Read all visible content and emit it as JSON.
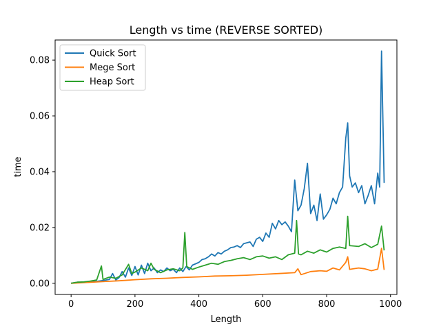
{
  "chart_data": {
    "type": "line",
    "title": "Length vs time (REVERSE SORTED)",
    "xlabel": "Length",
    "ylabel": "time",
    "xlim": [
      -50,
      1020
    ],
    "ylim": [
      -0.004,
      0.0872
    ],
    "xticks": [
      0,
      200,
      400,
      600,
      800,
      1000
    ],
    "xtick_labels": [
      "0",
      "200",
      "400",
      "600",
      "800",
      "1000"
    ],
    "yticks": [
      0.0,
      0.02,
      0.04,
      0.06,
      0.08
    ],
    "ytick_labels": [
      "0.00",
      "0.02",
      "0.04",
      "0.06",
      "0.08"
    ],
    "grid": false,
    "legend": "top-left",
    "series": [
      {
        "name": "Quick Sort",
        "color": "#1f77b4",
        "points": [
          [
            0,
            0.0
          ],
          [
            20,
            0.0004
          ],
          [
            40,
            0.0003
          ],
          [
            60,
            0.0006
          ],
          [
            80,
            0.0007
          ],
          [
            100,
            0.001
          ],
          [
            120,
            0.0014
          ],
          [
            130,
            0.0035
          ],
          [
            140,
            0.0012
          ],
          [
            150,
            0.002
          ],
          [
            160,
            0.0042
          ],
          [
            170,
            0.0022
          ],
          [
            180,
            0.0055
          ],
          [
            190,
            0.0028
          ],
          [
            200,
            0.006
          ],
          [
            210,
            0.003
          ],
          [
            220,
            0.0065
          ],
          [
            230,
            0.0035
          ],
          [
            240,
            0.0072
          ],
          [
            250,
            0.0045
          ],
          [
            260,
            0.0055
          ],
          [
            270,
            0.0038
          ],
          [
            280,
            0.0048
          ],
          [
            290,
            0.0042
          ],
          [
            300,
            0.0055
          ],
          [
            310,
            0.0045
          ],
          [
            320,
            0.005
          ],
          [
            330,
            0.0038
          ],
          [
            340,
            0.0055
          ],
          [
            350,
            0.0042
          ],
          [
            360,
            0.006
          ],
          [
            370,
            0.0048
          ],
          [
            380,
            0.0065
          ],
          [
            390,
            0.007
          ],
          [
            400,
            0.0075
          ],
          [
            410,
            0.0085
          ],
          [
            420,
            0.0088
          ],
          [
            430,
            0.0095
          ],
          [
            440,
            0.0105
          ],
          [
            450,
            0.0098
          ],
          [
            460,
            0.011
          ],
          [
            470,
            0.0105
          ],
          [
            480,
            0.0115
          ],
          [
            490,
            0.012
          ],
          [
            500,
            0.0128
          ],
          [
            510,
            0.013
          ],
          [
            520,
            0.0135
          ],
          [
            530,
            0.0128
          ],
          [
            540,
            0.0142
          ],
          [
            550,
            0.0145
          ],
          [
            560,
            0.0148
          ],
          [
            570,
            0.0132
          ],
          [
            580,
            0.0158
          ],
          [
            590,
            0.0165
          ],
          [
            600,
            0.015
          ],
          [
            610,
            0.018
          ],
          [
            620,
            0.0165
          ],
          [
            630,
            0.0215
          ],
          [
            640,
            0.0195
          ],
          [
            650,
            0.0225
          ],
          [
            660,
            0.021
          ],
          [
            670,
            0.022
          ],
          [
            680,
            0.0205
          ],
          [
            690,
            0.0185
          ],
          [
            700,
            0.037
          ],
          [
            710,
            0.026
          ],
          [
            720,
            0.028
          ],
          [
            730,
            0.034
          ],
          [
            740,
            0.043
          ],
          [
            750,
            0.025
          ],
          [
            760,
            0.028
          ],
          [
            770,
            0.0225
          ],
          [
            780,
            0.032
          ],
          [
            790,
            0.023
          ],
          [
            800,
            0.0245
          ],
          [
            810,
            0.0265
          ],
          [
            820,
            0.0305
          ],
          [
            830,
            0.0285
          ],
          [
            840,
            0.0325
          ],
          [
            850,
            0.0345
          ],
          [
            860,
            0.052
          ],
          [
            866,
            0.0575
          ],
          [
            872,
            0.0385
          ],
          [
            880,
            0.0345
          ],
          [
            890,
            0.036
          ],
          [
            900,
            0.0325
          ],
          [
            910,
            0.035
          ],
          [
            920,
            0.0285
          ],
          [
            930,
            0.0315
          ],
          [
            940,
            0.035
          ],
          [
            950,
            0.0285
          ],
          [
            960,
            0.0395
          ],
          [
            966,
            0.0345
          ],
          [
            972,
            0.0832
          ],
          [
            980,
            0.036
          ]
        ]
      },
      {
        "name": "Mege Sort",
        "color": "#ff7f0e",
        "points": [
          [
            0,
            0.0
          ],
          [
            50,
            0.0003
          ],
          [
            100,
            0.0006
          ],
          [
            150,
            0.0009
          ],
          [
            200,
            0.0013
          ],
          [
            250,
            0.0016
          ],
          [
            300,
            0.0018
          ],
          [
            350,
            0.0021
          ],
          [
            400,
            0.0023
          ],
          [
            450,
            0.0026
          ],
          [
            500,
            0.0027
          ],
          [
            550,
            0.0029
          ],
          [
            600,
            0.0032
          ],
          [
            650,
            0.0035
          ],
          [
            700,
            0.0038
          ],
          [
            710,
            0.0052
          ],
          [
            720,
            0.0031
          ],
          [
            750,
            0.0042
          ],
          [
            780,
            0.0045
          ],
          [
            800,
            0.0043
          ],
          [
            820,
            0.0055
          ],
          [
            840,
            0.0048
          ],
          [
            860,
            0.0075
          ],
          [
            866,
            0.0095
          ],
          [
            872,
            0.005
          ],
          [
            900,
            0.0055
          ],
          [
            920,
            0.0052
          ],
          [
            940,
            0.0045
          ],
          [
            960,
            0.0051
          ],
          [
            972,
            0.0125
          ],
          [
            980,
            0.0048
          ]
        ]
      },
      {
        "name": "Heap Sort",
        "color": "#2ca02c",
        "points": [
          [
            0,
            0.0
          ],
          [
            20,
            0.0004
          ],
          [
            40,
            0.0005
          ],
          [
            60,
            0.0008
          ],
          [
            80,
            0.0012
          ],
          [
            95,
            0.0062
          ],
          [
            100,
            0.0014
          ],
          [
            120,
            0.0022
          ],
          [
            140,
            0.0018
          ],
          [
            160,
            0.003
          ],
          [
            180,
            0.0068
          ],
          [
            190,
            0.0035
          ],
          [
            200,
            0.004
          ],
          [
            220,
            0.0055
          ],
          [
            240,
            0.0045
          ],
          [
            250,
            0.0072
          ],
          [
            260,
            0.005
          ],
          [
            280,
            0.0038
          ],
          [
            300,
            0.0048
          ],
          [
            320,
            0.0052
          ],
          [
            340,
            0.0045
          ],
          [
            350,
            0.0055
          ],
          [
            356,
            0.0182
          ],
          [
            362,
            0.006
          ],
          [
            380,
            0.005
          ],
          [
            400,
            0.0058
          ],
          [
            420,
            0.0065
          ],
          [
            440,
            0.0072
          ],
          [
            460,
            0.0068
          ],
          [
            480,
            0.0078
          ],
          [
            500,
            0.0082
          ],
          [
            520,
            0.0088
          ],
          [
            540,
            0.0092
          ],
          [
            560,
            0.0085
          ],
          [
            580,
            0.0095
          ],
          [
            600,
            0.0098
          ],
          [
            620,
            0.009
          ],
          [
            640,
            0.0095
          ],
          [
            660,
            0.0085
          ],
          [
            680,
            0.0102
          ],
          [
            700,
            0.0108
          ],
          [
            706,
            0.0225
          ],
          [
            712,
            0.0105
          ],
          [
            720,
            0.0102
          ],
          [
            740,
            0.0115
          ],
          [
            760,
            0.0108
          ],
          [
            780,
            0.012
          ],
          [
            800,
            0.0112
          ],
          [
            820,
            0.0125
          ],
          [
            840,
            0.013
          ],
          [
            860,
            0.0125
          ],
          [
            866,
            0.024
          ],
          [
            872,
            0.0135
          ],
          [
            900,
            0.0132
          ],
          [
            920,
            0.0142
          ],
          [
            940,
            0.0128
          ],
          [
            960,
            0.014
          ],
          [
            972,
            0.0205
          ],
          [
            980,
            0.0118
          ]
        ]
      }
    ]
  }
}
